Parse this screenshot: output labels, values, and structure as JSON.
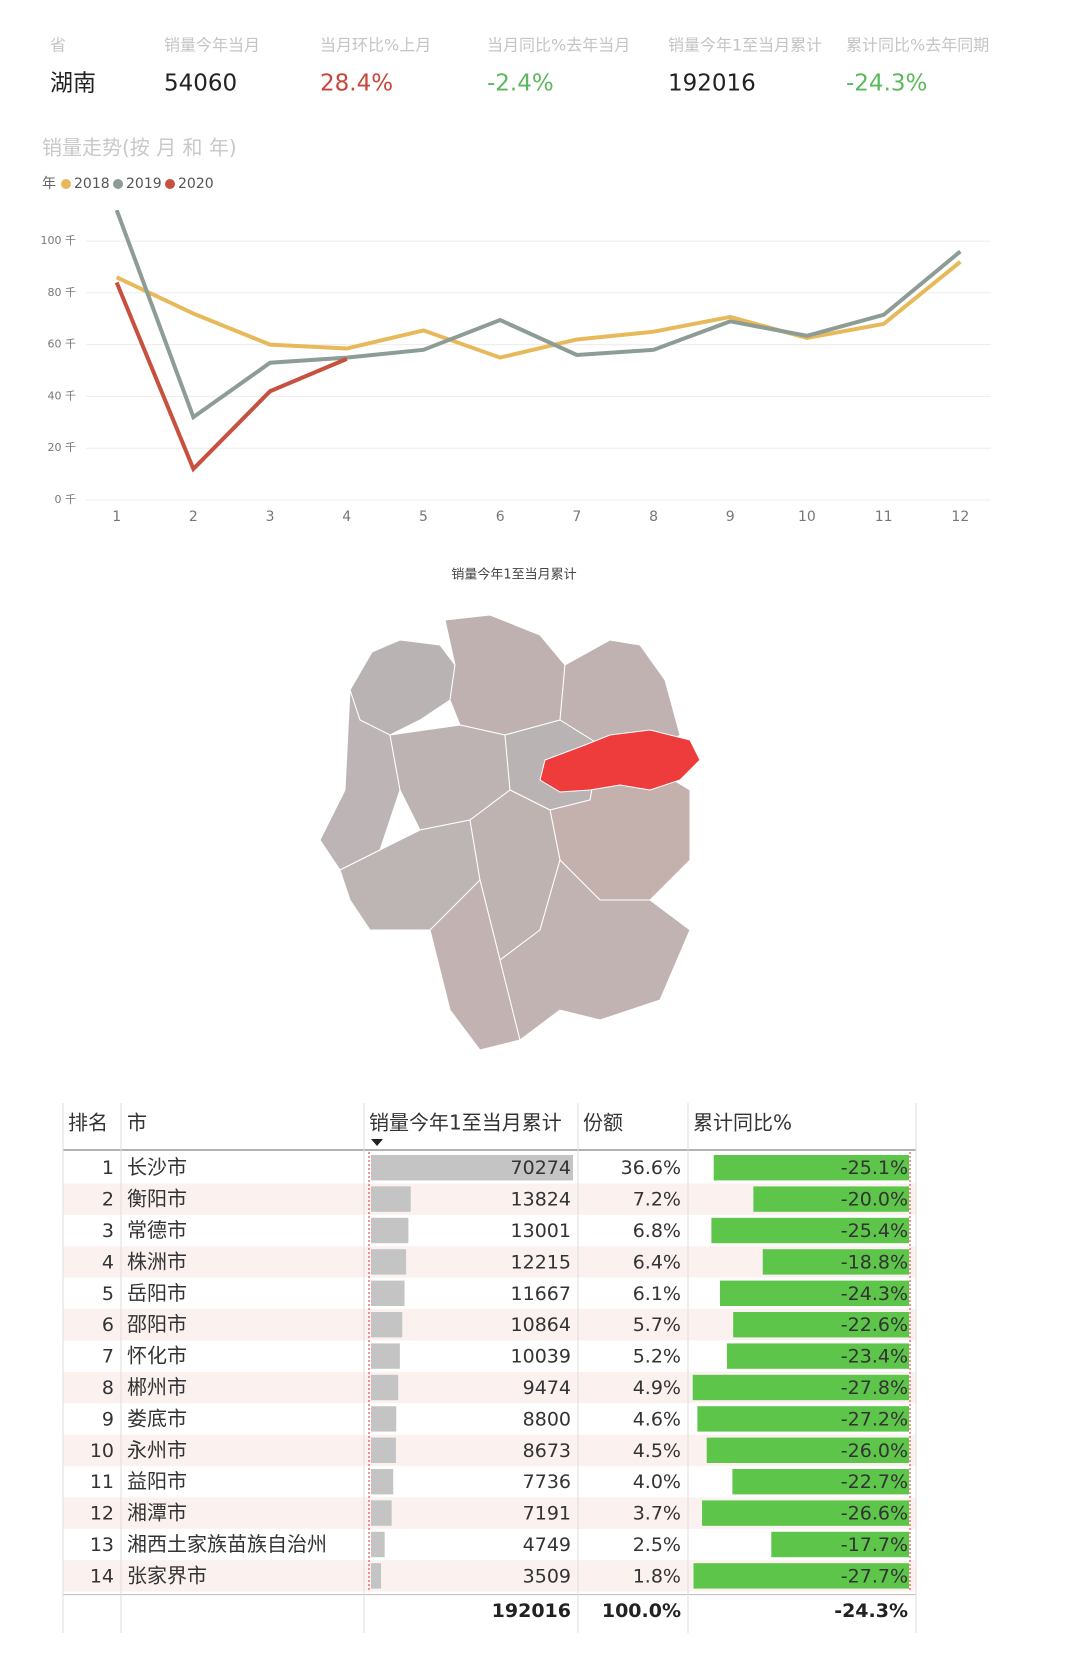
{
  "kpis": [
    {
      "label": "省",
      "value": "湖南",
      "color": "#222222"
    },
    {
      "label": "销量今年当月",
      "value": 54060,
      "color": "#222222"
    },
    {
      "label": "当月环比%上月",
      "value": "28.4%",
      "color": "#c8463c"
    },
    {
      "label": "当月同比%去年当月",
      "value": "-2.4%",
      "color": "#5cb85c"
    },
    {
      "label": "销量今年1至当月累计",
      "value": 192016,
      "color": "#222222"
    },
    {
      "label": "累计同比%去年同期",
      "value": "-24.3%",
      "color": "#5cb85c"
    }
  ],
  "chart_data": {
    "type": "line",
    "title": "销量走势(按 月 和 年)",
    "legend_title": "年",
    "x": [
      1,
      2,
      3,
      4,
      5,
      6,
      7,
      8,
      9,
      10,
      11,
      12
    ],
    "xlim": [
      0.6,
      12.4
    ],
    "series": [
      {
        "name": "2018",
        "color": "#e8b95a",
        "values": [
          86,
          72,
          60,
          58.5,
          65.5,
          55,
          62,
          65,
          70.7,
          62.6,
          68,
          92
        ]
      },
      {
        "name": "2019",
        "color": "#8d9c94",
        "values": [
          112,
          32,
          53,
          55,
          58,
          69.5,
          56,
          58,
          69,
          63.4,
          71.5,
          96
        ]
      },
      {
        "name": "2020",
        "color": "#c8503f",
        "values": [
          84,
          12,
          42,
          54.5,
          null,
          null,
          null,
          null,
          null,
          null,
          null,
          null
        ]
      }
    ],
    "ylim": [
      0,
      112
    ],
    "yticks": [
      {
        "value": 0,
        "label": "0 千"
      },
      {
        "value": 20,
        "label": "20 千"
      },
      {
        "value": 40,
        "label": "40 千"
      },
      {
        "value": 60,
        "label": "60 千"
      },
      {
        "value": 80,
        "label": "80 千"
      },
      {
        "value": 100,
        "label": "100 千"
      }
    ],
    "grid": true
  },
  "map": {
    "title": "销量今年1至当月累计"
  },
  "table": {
    "headers": [
      "排名",
      "市",
      "销量今年1至当月累计",
      "份额",
      "累计同比%"
    ],
    "rows": [
      {
        "rank": 1,
        "city": "长沙市",
        "sales": 70274,
        "share": "36.6%",
        "yoy": {
          "value": -25.1,
          "label": "-25.1%"
        }
      },
      {
        "rank": 2,
        "city": "衡阳市",
        "sales": 13824,
        "share": "7.2%",
        "yoy": {
          "value": -20.0,
          "label": "-20.0%"
        }
      },
      {
        "rank": 3,
        "city": "常德市",
        "sales": 13001,
        "share": "6.8%",
        "yoy": {
          "value": -25.4,
          "label": "-25.4%"
        }
      },
      {
        "rank": 4,
        "city": "株洲市",
        "sales": 12215,
        "share": "6.4%",
        "yoy": {
          "value": -18.8,
          "label": "-18.8%"
        }
      },
      {
        "rank": 5,
        "city": "岳阳市",
        "sales": 11667,
        "share": "6.1%",
        "yoy": {
          "value": -24.3,
          "label": "-24.3%"
        }
      },
      {
        "rank": 6,
        "city": "邵阳市",
        "sales": 10864,
        "share": "5.7%",
        "yoy": {
          "value": -22.6,
          "label": "-22.6%"
        }
      },
      {
        "rank": 7,
        "city": "怀化市",
        "sales": 10039,
        "share": "5.2%",
        "yoy": {
          "value": -23.4,
          "label": "-23.4%"
        }
      },
      {
        "rank": 8,
        "city": "郴州市",
        "sales": 9474,
        "share": "4.9%",
        "yoy": {
          "value": -27.8,
          "label": "-27.8%"
        }
      },
      {
        "rank": 9,
        "city": "娄底市",
        "sales": 8800,
        "share": "4.6%",
        "yoy": {
          "value": -27.2,
          "label": "-27.2%"
        }
      },
      {
        "rank": 10,
        "city": "永州市",
        "sales": 8673,
        "share": "4.5%",
        "yoy": {
          "value": -26.0,
          "label": "-26.0%"
        }
      },
      {
        "rank": 11,
        "city": "益阳市",
        "sales": 7736,
        "share": "4.0%",
        "yoy": {
          "value": -22.7,
          "label": "-22.7%"
        }
      },
      {
        "rank": 12,
        "city": "湘潭市",
        "sales": 7191,
        "share": "3.7%",
        "yoy": {
          "value": -26.6,
          "label": "-26.6%"
        }
      },
      {
        "rank": 13,
        "city": "湘西土家族苗族自治州",
        "sales": 4749,
        "share": "2.5%",
        "yoy": {
          "value": -17.7,
          "label": "-17.7%"
        }
      },
      {
        "rank": 14,
        "city": "张家界市",
        "sales": 3509,
        "share": "1.8%",
        "yoy": {
          "value": -27.7,
          "label": "-27.7%"
        }
      }
    ],
    "total": {
      "sales": 192016,
      "share": "100.0%",
      "yoy": {
        "value": -24.3,
        "label": "-24.3%"
      }
    }
  }
}
